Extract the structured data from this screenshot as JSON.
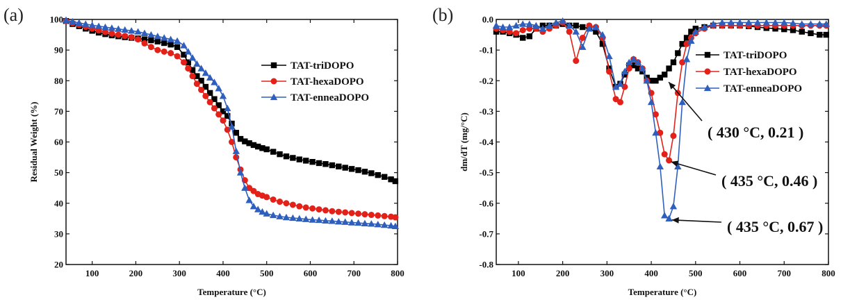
{
  "chart_data": [
    {
      "panel": "(a)",
      "type": "line",
      "xlabel": "Temperature  (°C)",
      "ylabel": "Residual Weight (%)",
      "xlim": [
        40,
        800
      ],
      "ylim": [
        20,
        100
      ],
      "xticks": [
        100,
        200,
        300,
        400,
        500,
        600,
        700,
        800
      ],
      "yticks": [
        20,
        30,
        40,
        50,
        60,
        70,
        80,
        90,
        100
      ],
      "legend": "middle-right",
      "series": [
        {
          "name": "TAT-triDOPO",
          "color": "#000000",
          "marker": "square",
          "x": [
            40,
            55,
            70,
            85,
            100,
            115,
            130,
            145,
            160,
            175,
            190,
            205,
            220,
            235,
            250,
            265,
            280,
            295,
            310,
            320,
            330,
            340,
            350,
            360,
            370,
            380,
            390,
            400,
            410,
            420,
            430,
            440,
            450,
            460,
            470,
            480,
            490,
            500,
            515,
            530,
            545,
            560,
            575,
            590,
            605,
            620,
            635,
            650,
            665,
            680,
            695,
            710,
            725,
            740,
            755,
            770,
            785,
            795
          ],
          "y": [
            99.5,
            98.5,
            97.8,
            97,
            96.3,
            95.7,
            95.2,
            94.8,
            94.5,
            94.2,
            94,
            93.8,
            93.5,
            93.2,
            92.8,
            92.3,
            91.8,
            91,
            88.5,
            86,
            83.5,
            81.5,
            80,
            78,
            76,
            74,
            72,
            70,
            68.5,
            66,
            63,
            61,
            60.2,
            59.6,
            59,
            58.5,
            58,
            57.6,
            56.8,
            56,
            55.3,
            54.8,
            54.3,
            53.9,
            53.5,
            53.1,
            52.8,
            52.4,
            52,
            51.6,
            51.2,
            50.8,
            50.3,
            49.8,
            49.2,
            48.6,
            47.8,
            47.2
          ]
        },
        {
          "name": "TAT-hexaDOPO",
          "color": "#e32119",
          "marker": "circle",
          "x": [
            40,
            55,
            70,
            85,
            100,
            115,
            130,
            145,
            160,
            175,
            190,
            205,
            220,
            235,
            250,
            265,
            280,
            295,
            310,
            320,
            330,
            340,
            350,
            360,
            370,
            380,
            390,
            400,
            410,
            420,
            430,
            440,
            450,
            460,
            470,
            480,
            490,
            500,
            515,
            530,
            545,
            560,
            575,
            590,
            605,
            620,
            635,
            650,
            665,
            680,
            695,
            710,
            725,
            740,
            755,
            770,
            785,
            795
          ],
          "y": [
            99.5,
            98.8,
            98.2,
            97.6,
            97,
            96.4,
            95.9,
            95.4,
            95,
            94.6,
            94.2,
            93.5,
            92.2,
            91,
            90,
            89.5,
            89,
            88,
            86,
            84,
            81.5,
            79,
            77,
            75,
            73,
            71,
            69,
            67,
            64,
            60,
            55,
            51,
            47.5,
            45,
            44,
            43,
            42.5,
            42,
            41.2,
            40.5,
            40,
            39.5,
            39,
            38.6,
            38.3,
            38,
            37.7,
            37.4,
            37.2,
            37,
            36.8,
            36.6,
            36.4,
            36.2,
            36,
            35.8,
            35.6,
            35.4
          ]
        },
        {
          "name": "TAT-enneaDOPO",
          "color": "#2f5fbd",
          "marker": "triangle",
          "x": [
            40,
            55,
            70,
            85,
            100,
            115,
            130,
            145,
            160,
            175,
            190,
            205,
            220,
            235,
            250,
            265,
            280,
            295,
            310,
            320,
            330,
            340,
            350,
            360,
            370,
            380,
            390,
            400,
            410,
            420,
            430,
            440,
            450,
            460,
            470,
            480,
            490,
            500,
            515,
            530,
            545,
            560,
            575,
            590,
            605,
            620,
            635,
            650,
            665,
            680,
            695,
            710,
            725,
            740,
            755,
            770,
            785,
            795
          ],
          "y": [
            99.8,
            99.3,
            98.9,
            98.5,
            98.1,
            97.8,
            97.5,
            97.2,
            96.9,
            96.6,
            96.3,
            96,
            95.5,
            95,
            94.5,
            94,
            93.5,
            93,
            91.5,
            89.5,
            87.5,
            85.5,
            84,
            82.5,
            81,
            79.5,
            77.5,
            75,
            71,
            65,
            57,
            50,
            45,
            41,
            39,
            38,
            37.2,
            36.6,
            36.1,
            35.7,
            35.4,
            35.2,
            35,
            34.8,
            34.6,
            34.5,
            34.3,
            34.2,
            34,
            33.9,
            33.7,
            33.6,
            33.4,
            33.3,
            33.1,
            32.9,
            32.7,
            32.5
          ]
        }
      ]
    },
    {
      "panel": "(b)",
      "type": "line",
      "xlabel": "Temperature  (°C)",
      "ylabel": "dm/dT (mg/°C)",
      "xlim": [
        50,
        800
      ],
      "ylim": [
        -0.8,
        0.0
      ],
      "xticks": [
        100,
        200,
        300,
        400,
        500,
        600,
        700,
        800
      ],
      "yticks": [
        0.0,
        -0.1,
        -0.2,
        -0.3,
        -0.4,
        -0.5,
        -0.6,
        -0.7,
        -0.8
      ],
      "legend": "top-right",
      "series": [
        {
          "name": "TAT-triDOPO",
          "color": "#000000",
          "marker": "square",
          "x": [
            50,
            65,
            80,
            95,
            110,
            125,
            140,
            155,
            170,
            185,
            200,
            215,
            230,
            245,
            260,
            275,
            290,
            305,
            320,
            330,
            340,
            350,
            360,
            370,
            380,
            390,
            400,
            410,
            420,
            430,
            440,
            450,
            460,
            470,
            480,
            490,
            500,
            520,
            540,
            560,
            580,
            600,
            620,
            640,
            660,
            680,
            700,
            720,
            740,
            760,
            780,
            795
          ],
          "y": [
            -0.04,
            -0.04,
            -0.045,
            -0.05,
            -0.06,
            -0.055,
            -0.03,
            -0.02,
            -0.02,
            -0.02,
            -0.015,
            -0.02,
            -0.02,
            -0.025,
            -0.03,
            -0.04,
            -0.08,
            -0.16,
            -0.22,
            -0.21,
            -0.18,
            -0.15,
            -0.15,
            -0.16,
            -0.17,
            -0.19,
            -0.2,
            -0.2,
            -0.19,
            -0.18,
            -0.16,
            -0.14,
            -0.11,
            -0.08,
            -0.06,
            -0.04,
            -0.03,
            -0.025,
            -0.02,
            -0.02,
            -0.02,
            -0.02,
            -0.022,
            -0.025,
            -0.028,
            -0.03,
            -0.032,
            -0.035,
            -0.04,
            -0.045,
            -0.05,
            -0.05
          ]
        },
        {
          "name": "TAT-hexaDOPO",
          "color": "#e32119",
          "marker": "circle",
          "x": [
            50,
            65,
            80,
            95,
            110,
            125,
            140,
            155,
            170,
            185,
            200,
            215,
            230,
            245,
            260,
            275,
            290,
            305,
            320,
            330,
            340,
            350,
            360,
            370,
            380,
            390,
            400,
            410,
            420,
            430,
            440,
            450,
            460,
            470,
            480,
            490,
            500,
            520,
            540,
            560,
            580,
            600,
            620,
            640,
            660,
            680,
            700,
            720,
            740,
            760,
            780,
            795
          ],
          "y": [
            -0.03,
            -0.035,
            -0.04,
            -0.045,
            -0.035,
            -0.03,
            -0.03,
            -0.04,
            -0.03,
            -0.02,
            -0.01,
            -0.04,
            -0.135,
            -0.06,
            -0.02,
            -0.025,
            -0.06,
            -0.17,
            -0.26,
            -0.27,
            -0.22,
            -0.16,
            -0.13,
            -0.14,
            -0.16,
            -0.2,
            -0.24,
            -0.31,
            -0.37,
            -0.44,
            -0.46,
            -0.38,
            -0.24,
            -0.14,
            -0.08,
            -0.06,
            -0.045,
            -0.03,
            -0.02,
            -0.02,
            -0.02,
            -0.02,
            -0.02,
            -0.02,
            -0.02,
            -0.02,
            -0.02,
            -0.02,
            -0.02,
            -0.02,
            -0.02,
            -0.02
          ]
        },
        {
          "name": "TAT-enneaDOPO",
          "color": "#2f5fbd",
          "marker": "triangle",
          "x": [
            50,
            65,
            80,
            95,
            110,
            125,
            140,
            155,
            170,
            185,
            200,
            215,
            230,
            245,
            260,
            275,
            290,
            305,
            320,
            330,
            340,
            350,
            360,
            370,
            380,
            390,
            400,
            410,
            420,
            430,
            440,
            450,
            460,
            470,
            480,
            490,
            500,
            520,
            540,
            560,
            580,
            600,
            620,
            640,
            660,
            680,
            700,
            720,
            740,
            760,
            780,
            795
          ],
          "y": [
            -0.02,
            -0.025,
            -0.025,
            -0.02,
            -0.015,
            -0.015,
            -0.02,
            -0.03,
            -0.02,
            -0.01,
            -0.005,
            -0.02,
            -0.04,
            -0.09,
            -0.03,
            -0.025,
            -0.05,
            -0.12,
            -0.22,
            -0.21,
            -0.17,
            -0.14,
            -0.13,
            -0.14,
            -0.16,
            -0.2,
            -0.27,
            -0.37,
            -0.48,
            -0.64,
            -0.65,
            -0.61,
            -0.48,
            -0.27,
            -0.13,
            -0.07,
            -0.04,
            -0.025,
            -0.015,
            -0.01,
            -0.01,
            -0.01,
            -0.01,
            -0.01,
            -0.01,
            -0.01,
            -0.01,
            -0.012,
            -0.015,
            -0.015,
            -0.015,
            -0.015
          ]
        }
      ],
      "annotations": [
        {
          "text": "( 430 °C, 0.21 )",
          "x": 430,
          "y": -0.2
        },
        {
          "text": "( 435 °C, 0.46 )",
          "x": 435,
          "y": -0.46
        },
        {
          "text": "( 435 °C, 0.67 )",
          "x": 437,
          "y": -0.65
        }
      ]
    }
  ]
}
